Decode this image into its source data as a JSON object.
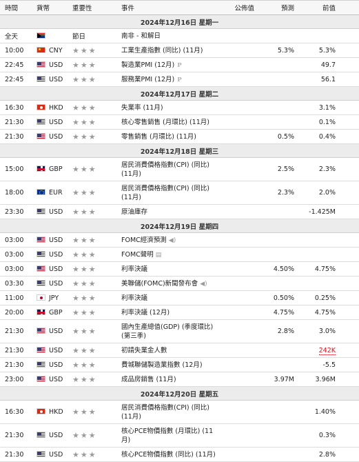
{
  "header": {
    "time": "時間",
    "currency": "貨幣",
    "importance": "重要性",
    "event": "事件",
    "actual": "公佈值",
    "forecast": "預測",
    "previous": "前值"
  },
  "colors": {
    "star": "#9a9a9a",
    "negative": "#e0121f",
    "date_band": "#ececec"
  },
  "sections": [
    {
      "date": "2024年12月16日 星期一",
      "events": [
        {
          "time": "全天",
          "flag": "za",
          "currency": "",
          "importance": "節日",
          "event": "南非 - 和解日",
          "actual": "",
          "forecast": "",
          "previous": ""
        },
        {
          "time": "10:00",
          "flag": "cn",
          "currency": "CNY",
          "importance_stars": 3,
          "event": "工業生產指數 (同比) (11月)",
          "actual": "",
          "forecast": "5.3%",
          "previous": "5.3%"
        },
        {
          "time": "22:45",
          "flag": "us",
          "currency": "USD",
          "importance_stars": 3,
          "event": "製造業PMI (12月)",
          "icon": "preliminary-icon",
          "icon_text": "P",
          "actual": "",
          "forecast": "",
          "previous": "49.7"
        },
        {
          "time": "22:45",
          "flag": "us",
          "currency": "USD",
          "importance_stars": 3,
          "event": "服務業PMI (12月)",
          "icon": "preliminary-icon",
          "icon_text": "P",
          "actual": "",
          "forecast": "",
          "previous": "56.1"
        }
      ]
    },
    {
      "date": "2024年12月17日 星期二",
      "events": [
        {
          "time": "16:30",
          "flag": "hk",
          "currency": "HKD",
          "importance_stars": 3,
          "event": "失業率 (11月)",
          "actual": "",
          "forecast": "",
          "previous": "3.1%"
        },
        {
          "time": "21:30",
          "flag": "us",
          "currency": "USD",
          "importance_stars": 3,
          "event": "核心零售銷售 (月環比) (11月)",
          "actual": "",
          "forecast": "",
          "previous": "0.1%"
        },
        {
          "time": "21:30",
          "flag": "us",
          "currency": "USD",
          "importance_stars": 3,
          "event": "零售銷售 (月環比) (11月)",
          "actual": "",
          "forecast": "0.5%",
          "previous": "0.4%"
        }
      ]
    },
    {
      "date": "2024年12月18日 星期三",
      "events": [
        {
          "time": "15:00",
          "flag": "gb",
          "currency": "GBP",
          "importance_stars": 3,
          "event": "居民消費價格指數(CPI) (同比) (11月)",
          "tall": true,
          "actual": "",
          "forecast": "2.5%",
          "previous": "2.3%"
        },
        {
          "time": "18:00",
          "flag": "eu",
          "currency": "EUR",
          "importance_stars": 3,
          "event": "居民消費價格指數(CPI) (同比) (11月)",
          "tall": true,
          "actual": "",
          "forecast": "2.3%",
          "previous": "2.0%"
        },
        {
          "time": "23:30",
          "flag": "us",
          "currency": "USD",
          "importance_stars": 3,
          "event": "原油庫存",
          "actual": "",
          "forecast": "",
          "previous": "-1.425M"
        }
      ]
    },
    {
      "date": "2024年12月19日 星期四",
      "events": [
        {
          "time": "03:00",
          "flag": "us",
          "currency": "USD",
          "importance_stars": 3,
          "event": "FOMC經濟預測",
          "icon": "sound-icon",
          "icon_text": "◀)",
          "actual": "",
          "forecast": "",
          "previous": ""
        },
        {
          "time": "03:00",
          "flag": "us",
          "currency": "USD",
          "importance_stars": 3,
          "event": "FOMC聲明",
          "icon": "document-icon",
          "icon_text": "▤",
          "actual": "",
          "forecast": "",
          "previous": ""
        },
        {
          "time": "03:00",
          "flag": "us",
          "currency": "USD",
          "importance_stars": 3,
          "event": "利率決議",
          "actual": "",
          "forecast": "4.50%",
          "previous": "4.75%"
        },
        {
          "time": "03:30",
          "flag": "us",
          "currency": "USD",
          "importance_stars": 3,
          "event": "美聯儲(FOMC)新聞發布會",
          "icon": "sound-icon",
          "icon_text": "◀)",
          "actual": "",
          "forecast": "",
          "previous": ""
        },
        {
          "time": "11:00",
          "flag": "jp",
          "currency": "JPY",
          "importance_stars": 3,
          "event": "利率決議",
          "actual": "",
          "forecast": "0.50%",
          "previous": "0.25%"
        },
        {
          "time": "20:00",
          "flag": "gb",
          "currency": "GBP",
          "importance_stars": 3,
          "event": "利率決議 (12月)",
          "actual": "",
          "forecast": "4.75%",
          "previous": "4.75%"
        },
        {
          "time": "21:30",
          "flag": "us",
          "currency": "USD",
          "importance_stars": 3,
          "event": "國內生產總值(GDP) (季度環比) (第三季)",
          "tall": true,
          "actual": "",
          "forecast": "2.8%",
          "previous": "3.0%"
        },
        {
          "time": "21:30",
          "flag": "us",
          "currency": "USD",
          "importance_stars": 3,
          "event": "初請失業金人數",
          "actual": "",
          "forecast": "",
          "previous": "242K",
          "previous_color": "red"
        },
        {
          "time": "21:30",
          "flag": "us",
          "currency": "USD",
          "importance_stars": 3,
          "event": "費城聯儲製造業指數 (12月)",
          "actual": "",
          "forecast": "",
          "previous": "-5.5"
        },
        {
          "time": "23:00",
          "flag": "us",
          "currency": "USD",
          "importance_stars": 3,
          "event": "成品房銷售 (11月)",
          "actual": "",
          "forecast": "3.97M",
          "previous": "3.96M"
        }
      ]
    },
    {
      "date": "2024年12月20日 星期五",
      "events": [
        {
          "time": "16:30",
          "flag": "hk",
          "currency": "HKD",
          "importance_stars": 3,
          "event": "居民消費價格指數(CPI) (同比) (11月)",
          "tall": true,
          "actual": "",
          "forecast": "",
          "previous": "1.40%"
        },
        {
          "time": "21:30",
          "flag": "us",
          "currency": "USD",
          "importance_stars": 3,
          "event": "核心PCE物價指數 (月環比) (11月)",
          "tall": true,
          "actual": "",
          "forecast": "",
          "previous": "0.3%"
        },
        {
          "time": "21:30",
          "flag": "us",
          "currency": "USD",
          "importance_stars": 3,
          "event": "核心PCE物價指數 (同比) (11月)",
          "actual": "",
          "forecast": "",
          "previous": "2.8%"
        }
      ]
    }
  ]
}
